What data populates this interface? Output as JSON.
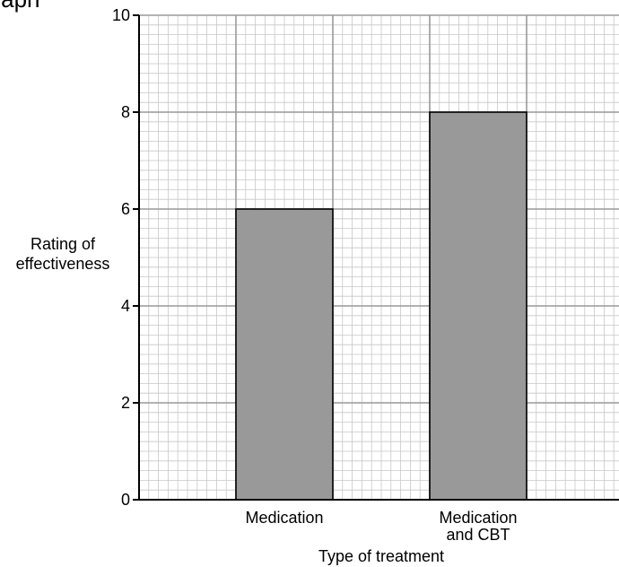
{
  "header": {
    "partial_title": "graph"
  },
  "chart_data": {
    "type": "bar",
    "title": "",
    "categories": [
      "Medication",
      "Medication and CBT"
    ],
    "category_lines": [
      [
        "Medication"
      ],
      [
        "Medication",
        "and CBT"
      ]
    ],
    "values": [
      6,
      8
    ],
    "xlabel": "Type of treatment",
    "ylabel_lines": [
      "Rating of",
      "effectiveness"
    ],
    "ylim": [
      0,
      10
    ],
    "yticks": [
      "0",
      "2",
      "4",
      "6",
      "8",
      "10"
    ],
    "grid": true,
    "bar_color": "#999999",
    "grid_major_color": "#999999",
    "grid_minor_color": "#c8c8c8"
  }
}
